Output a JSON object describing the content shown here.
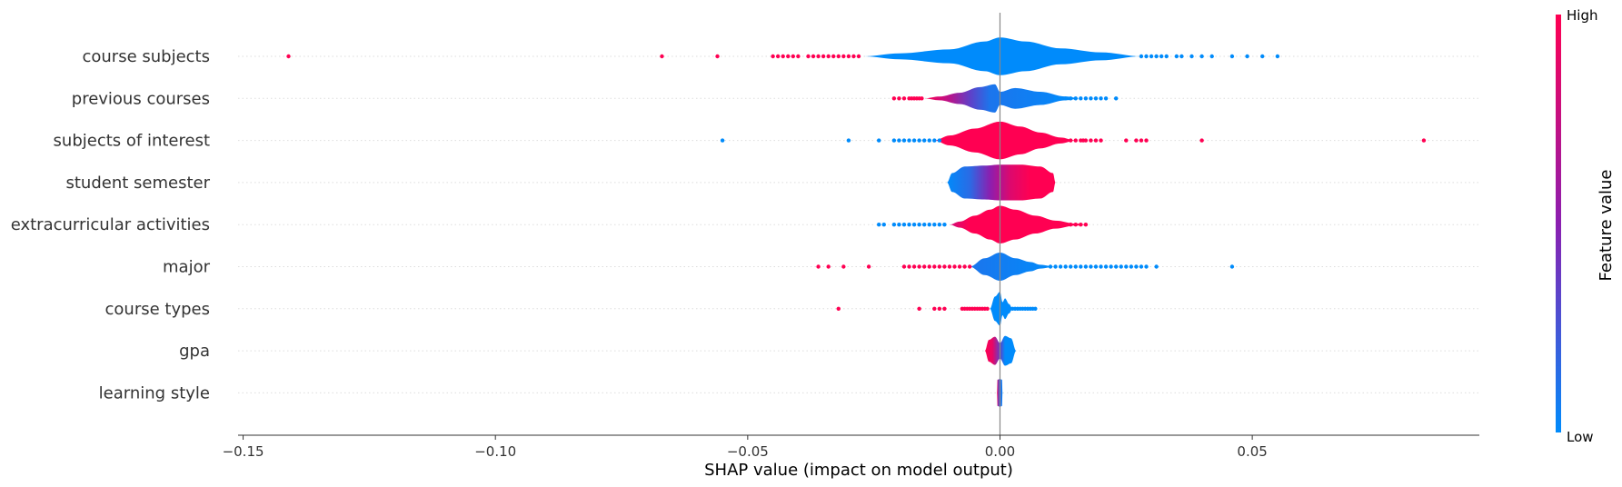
{
  "chart_data": {
    "type": "violin",
    "xlabel": "SHAP value (impact on model output)",
    "xlim": [
      -0.151,
      0.095
    ],
    "xticks": [
      -0.15,
      -0.1,
      -0.05,
      0.0,
      0.05
    ],
    "xtick_labels": [
      "−0.15",
      "−0.10",
      "−0.05",
      "0.00",
      "0.05"
    ],
    "colors": {
      "low": "#008bfb",
      "high": "#ff0052",
      "mid": "#8b1fb0"
    },
    "colorbar": {
      "label": "Feature value",
      "high_label": "High",
      "low_label": "Low"
    },
    "features": [
      {
        "name": "course subjects",
        "halfwidth": 0.95,
        "violin": [
          [
            -0.027,
            0.0
          ],
          [
            -0.02,
            0.15
          ],
          [
            -0.01,
            0.35
          ],
          [
            -0.003,
            0.75
          ],
          [
            0.0,
            0.95
          ],
          [
            0.005,
            0.75
          ],
          [
            0.012,
            0.4
          ],
          [
            0.02,
            0.2
          ],
          [
            0.028,
            0.0
          ]
        ],
        "violin_colors": [
          [
            -0.027,
            0.0
          ],
          [
            0.028,
            0.0
          ]
        ],
        "points_high": [
          -0.141,
          -0.067,
          -0.056,
          -0.045,
          -0.044,
          -0.043,
          -0.042,
          -0.041,
          -0.04,
          -0.038,
          -0.037,
          -0.036,
          -0.035,
          -0.034,
          -0.033,
          -0.032,
          -0.031,
          -0.03,
          -0.029,
          -0.028
        ],
        "points_low": [
          0.028,
          0.029,
          0.03,
          0.031,
          0.032,
          0.033,
          0.035,
          0.036,
          0.038,
          0.04,
          0.042,
          0.046,
          0.049,
          0.052,
          0.055
        ]
      },
      {
        "name": "previous courses",
        "halfwidth": 0.9,
        "violin": [
          [
            -0.015,
            0.0
          ],
          [
            -0.012,
            0.1
          ],
          [
            -0.008,
            0.3
          ],
          [
            -0.004,
            0.6
          ],
          [
            -0.001,
            0.75
          ],
          [
            0.0,
            0.35
          ],
          [
            0.003,
            0.55
          ],
          [
            0.008,
            0.35
          ],
          [
            0.013,
            0.1
          ],
          [
            0.016,
            0.0
          ]
        ],
        "violin_colors": [
          [
            -0.015,
            1.0
          ],
          [
            -0.01,
            0.7
          ],
          [
            -0.006,
            0.35
          ],
          [
            -0.002,
            0.1
          ],
          [
            0.016,
            0.0
          ]
        ],
        "points_high": [
          -0.021,
          -0.02,
          -0.019,
          -0.018,
          -0.0175,
          -0.017,
          -0.0165,
          -0.016,
          -0.0155
        ],
        "points_low": [
          0.011,
          0.012,
          0.013,
          0.014,
          0.015,
          0.016,
          0.017,
          0.018,
          0.019,
          0.02,
          0.021,
          0.023
        ]
      },
      {
        "name": "subjects of interest",
        "halfwidth": 0.95,
        "violin": [
          [
            -0.013,
            0.0
          ],
          [
            -0.01,
            0.25
          ],
          [
            -0.005,
            0.6
          ],
          [
            0.0,
            0.95
          ],
          [
            0.004,
            0.7
          ],
          [
            0.008,
            0.4
          ],
          [
            0.012,
            0.15
          ],
          [
            0.015,
            0.0
          ]
        ],
        "violin_colors": [
          [
            -0.013,
            1.0
          ],
          [
            0.015,
            1.0
          ]
        ],
        "points_high": [
          0.014,
          0.015,
          0.016,
          0.0165,
          0.017,
          0.018,
          0.019,
          0.02,
          0.025,
          0.027,
          0.028,
          0.029,
          0.04,
          0.084
        ],
        "points_low": [
          -0.055,
          -0.03,
          -0.024,
          -0.021,
          -0.02,
          -0.019,
          -0.018,
          -0.017,
          -0.016,
          -0.015,
          -0.014,
          -0.013,
          -0.012
        ]
      },
      {
        "name": "student semester",
        "halfwidth": 0.9,
        "violin": [
          [
            -0.0105,
            0.0
          ],
          [
            -0.0095,
            0.5
          ],
          [
            -0.007,
            0.85
          ],
          [
            -0.003,
            0.9
          ],
          [
            0.0,
            0.95
          ],
          [
            0.004,
            0.95
          ],
          [
            0.008,
            0.85
          ],
          [
            0.0105,
            0.5
          ],
          [
            0.011,
            0.0
          ]
        ],
        "violin_colors": [
          [
            -0.0105,
            0.0
          ],
          [
            -0.006,
            0.15
          ],
          [
            -0.002,
            0.5
          ],
          [
            0.002,
            0.85
          ],
          [
            0.006,
            1.0
          ],
          [
            0.011,
            1.0
          ]
        ],
        "points_high": [],
        "points_low": []
      },
      {
        "name": "extracurricular activities",
        "halfwidth": 0.95,
        "violin": [
          [
            -0.01,
            0.0
          ],
          [
            -0.008,
            0.15
          ],
          [
            -0.005,
            0.45
          ],
          [
            -0.002,
            0.75
          ],
          [
            0.0,
            0.95
          ],
          [
            0.003,
            0.75
          ],
          [
            0.007,
            0.45
          ],
          [
            0.011,
            0.2
          ],
          [
            0.015,
            0.05
          ],
          [
            0.0175,
            0.0
          ]
        ],
        "violin_colors": [
          [
            -0.01,
            0.8
          ],
          [
            -0.006,
            1.0
          ],
          [
            0.0175,
            1.0
          ]
        ],
        "points_high": [
          0.012,
          0.013,
          0.014,
          0.015,
          0.016,
          0.017
        ],
        "points_low": [
          -0.024,
          -0.023,
          -0.021,
          -0.02,
          -0.019,
          -0.018,
          -0.017,
          -0.016,
          -0.015,
          -0.014,
          -0.013,
          -0.012,
          -0.011
        ]
      },
      {
        "name": "major",
        "halfwidth": 0.9,
        "violin": [
          [
            -0.006,
            0.0
          ],
          [
            -0.003,
            0.45
          ],
          [
            0.0,
            0.75
          ],
          [
            0.003,
            0.45
          ],
          [
            0.006,
            0.25
          ],
          [
            0.008,
            0.1
          ],
          [
            0.011,
            0.0
          ]
        ],
        "violin_colors": [
          [
            -0.006,
            0.1
          ],
          [
            0.011,
            0.0
          ]
        ],
        "points_high": [
          -0.036,
          -0.034,
          -0.031,
          -0.026,
          -0.019,
          -0.018,
          -0.017,
          -0.016,
          -0.015,
          -0.014,
          -0.013,
          -0.012,
          -0.011,
          -0.01,
          -0.009,
          -0.008,
          -0.007,
          -0.006
        ],
        "points_low": [
          0.01,
          0.011,
          0.012,
          0.013,
          0.014,
          0.015,
          0.016,
          0.017,
          0.018,
          0.019,
          0.02,
          0.021,
          0.022,
          0.023,
          0.024,
          0.025,
          0.026,
          0.027,
          0.028,
          0.029,
          0.031,
          0.046
        ]
      },
      {
        "name": "course types",
        "halfwidth": 0.9,
        "violin": [
          [
            -0.002,
            0.0
          ],
          [
            -0.001,
            0.65
          ],
          [
            0.0,
            0.9
          ],
          [
            0.0005,
            0.35
          ],
          [
            0.001,
            0.55
          ],
          [
            0.0018,
            0.25
          ],
          [
            0.0025,
            0.0
          ]
        ],
        "violin_colors": [
          [
            -0.002,
            0.0
          ],
          [
            0.0025,
            0.0
          ]
        ],
        "points_high": [
          -0.032,
          -0.016,
          -0.013,
          -0.012,
          -0.011,
          -0.0075,
          -0.007,
          -0.0065,
          -0.006,
          -0.0055,
          -0.005,
          -0.0045,
          -0.004,
          -0.0035,
          -0.003,
          -0.0025
        ],
        "points_low": [
          0.002,
          0.0025,
          0.003,
          0.0035,
          0.004,
          0.0045,
          0.005,
          0.0055,
          0.006,
          0.0065,
          0.007
        ]
      },
      {
        "name": "gpa",
        "halfwidth": 0.75,
        "violin": [
          [
            -0.003,
            0.0
          ],
          [
            -0.0022,
            0.7
          ],
          [
            -0.001,
            0.9
          ],
          [
            0.0,
            0.5
          ],
          [
            0.001,
            0.95
          ],
          [
            0.0022,
            0.8
          ],
          [
            0.0032,
            0.0
          ]
        ],
        "violin_colors": [
          [
            -0.003,
            1.0
          ],
          [
            -0.0015,
            0.9
          ],
          [
            0.0,
            0.35
          ],
          [
            0.001,
            0.0
          ],
          [
            0.0032,
            0.0
          ]
        ],
        "points_high": [],
        "points_low": []
      },
      {
        "name": "learning style",
        "halfwidth": 0.7,
        "violin": [
          [
            -0.0006,
            0.0
          ],
          [
            -0.0005,
            0.9
          ],
          [
            0.0,
            0.95
          ],
          [
            0.0004,
            0.9
          ],
          [
            0.0005,
            0.0
          ]
        ],
        "violin_colors": [
          [
            -0.0006,
            1.0
          ],
          [
            -0.0002,
            0.3
          ],
          [
            0.0005,
            0.0
          ]
        ],
        "points_high": [],
        "points_low": []
      }
    ]
  }
}
